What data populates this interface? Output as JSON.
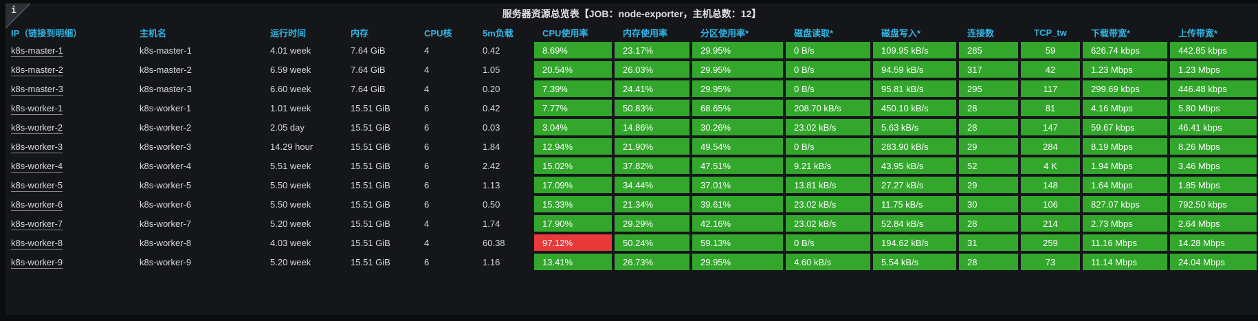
{
  "panel": {
    "title": "服务器资源总览表【JOB：node-exporter，主机总数：12】",
    "info_icon": "i"
  },
  "colors": {
    "cell_green": "#32A72C",
    "cell_red": "#E8393B",
    "header_blue": "#33B5E5"
  },
  "table": {
    "columns": [
      {
        "key": "ip",
        "label": "IP（链接到明细）",
        "type": "link"
      },
      {
        "key": "hostname",
        "label": "主机名"
      },
      {
        "key": "uptime",
        "label": "运行时间"
      },
      {
        "key": "memory",
        "label": "内存"
      },
      {
        "key": "cpu_cores",
        "label": "CPU核"
      },
      {
        "key": "load_5m",
        "label": "5m负载"
      },
      {
        "key": "cpu_usage",
        "label": "CPU使用率",
        "colored": true
      },
      {
        "key": "mem_usage",
        "label": "内存使用率",
        "colored": true
      },
      {
        "key": "partition_usage",
        "label": "分区使用率*",
        "colored": true
      },
      {
        "key": "disk_read",
        "label": "磁盘读取*",
        "colored": true
      },
      {
        "key": "disk_write",
        "label": "磁盘写入*",
        "colored": true
      },
      {
        "key": "connections",
        "label": "连接数",
        "colored": true
      },
      {
        "key": "tcp_tw",
        "label": "TCP_tw",
        "colored": true,
        "align": "center"
      },
      {
        "key": "download_bw",
        "label": "下载带宽*",
        "colored": true
      },
      {
        "key": "upload_bw",
        "label": "上传带宽*",
        "colored": true
      }
    ],
    "rows": [
      {
        "ip": "k8s-master-1",
        "hostname": "k8s-master-1",
        "uptime": "4.01 week",
        "memory": "7.64 GiB",
        "cpu_cores": "4",
        "load_5m": "0.42",
        "cpu_usage": "8.69%",
        "mem_usage": "23.17%",
        "partition_usage": "29.95%",
        "disk_read": "0 B/s",
        "disk_write": "109.95 kB/s",
        "connections": "285",
        "tcp_tw": "59",
        "download_bw": "626.74 kbps",
        "upload_bw": "442.85 kbps"
      },
      {
        "ip": "k8s-master-2",
        "hostname": "k8s-master-2",
        "uptime": "6.59 week",
        "memory": "7.64 GiB",
        "cpu_cores": "4",
        "load_5m": "1.05",
        "cpu_usage": "20.54%",
        "mem_usage": "26.03%",
        "partition_usage": "29.95%",
        "disk_read": "0 B/s",
        "disk_write": "94.59 kB/s",
        "connections": "317",
        "tcp_tw": "42",
        "download_bw": "1.23 Mbps",
        "upload_bw": "1.23 Mbps"
      },
      {
        "ip": "k8s-master-3",
        "hostname": "k8s-master-3",
        "uptime": "6.60 week",
        "memory": "7.64 GiB",
        "cpu_cores": "4",
        "load_5m": "0.20",
        "cpu_usage": "7.39%",
        "mem_usage": "24.41%",
        "partition_usage": "29.95%",
        "disk_read": "0 B/s",
        "disk_write": "95.81 kB/s",
        "connections": "295",
        "tcp_tw": "117",
        "download_bw": "299.69 kbps",
        "upload_bw": "446.48 kbps"
      },
      {
        "ip": "k8s-worker-1",
        "hostname": "k8s-worker-1",
        "uptime": "1.01 week",
        "memory": "15.51 GiB",
        "cpu_cores": "6",
        "load_5m": "0.42",
        "cpu_usage": "7.77%",
        "mem_usage": "50.83%",
        "partition_usage": "68.65%",
        "disk_read": "208.70 kB/s",
        "disk_write": "450.10 kB/s",
        "connections": "28",
        "tcp_tw": "81",
        "download_bw": "4.16 Mbps",
        "upload_bw": "5.80 Mbps"
      },
      {
        "ip": "k8s-worker-2",
        "hostname": "k8s-worker-2",
        "uptime": "2.05 day",
        "memory": "15.51 GiB",
        "cpu_cores": "6",
        "load_5m": "0.03",
        "cpu_usage": "3.04%",
        "mem_usage": "14.86%",
        "partition_usage": "30.26%",
        "disk_read": "23.02 kB/s",
        "disk_write": "5.63 kB/s",
        "connections": "28",
        "tcp_tw": "147",
        "download_bw": "59.67 kbps",
        "upload_bw": "46.41 kbps"
      },
      {
        "ip": "k8s-worker-3",
        "hostname": "k8s-worker-3",
        "uptime": "14.29 hour",
        "memory": "15.51 GiB",
        "cpu_cores": "6",
        "load_5m": "1.84",
        "cpu_usage": "12.94%",
        "mem_usage": "21.90%",
        "partition_usage": "49.54%",
        "disk_read": "0 B/s",
        "disk_write": "283.90 kB/s",
        "connections": "29",
        "tcp_tw": "284",
        "download_bw": "8.19 Mbps",
        "upload_bw": "8.26 Mbps"
      },
      {
        "ip": "k8s-worker-4",
        "hostname": "k8s-worker-4",
        "uptime": "5.51 week",
        "memory": "15.51 GiB",
        "cpu_cores": "6",
        "load_5m": "2.42",
        "cpu_usage": "15.02%",
        "mem_usage": "37.82%",
        "partition_usage": "47.51%",
        "disk_read": "9.21 kB/s",
        "disk_write": "43.95 kB/s",
        "connections": "52",
        "tcp_tw": "4 K",
        "download_bw": "1.94 Mbps",
        "upload_bw": "3.46 Mbps"
      },
      {
        "ip": "k8s-worker-5",
        "hostname": "k8s-worker-5",
        "uptime": "5.50 week",
        "memory": "15.51 GiB",
        "cpu_cores": "6",
        "load_5m": "1.13",
        "cpu_usage": "17.09%",
        "mem_usage": "34.44%",
        "partition_usage": "37.01%",
        "disk_read": "13.81 kB/s",
        "disk_write": "27.27 kB/s",
        "connections": "29",
        "tcp_tw": "148",
        "download_bw": "1.64 Mbps",
        "upload_bw": "1.85 Mbps"
      },
      {
        "ip": "k8s-worker-6",
        "hostname": "k8s-worker-6",
        "uptime": "5.50 week",
        "memory": "15.51 GiB",
        "cpu_cores": "6",
        "load_5m": "0.50",
        "cpu_usage": "15.33%",
        "mem_usage": "21.34%",
        "partition_usage": "39.61%",
        "disk_read": "23.02 kB/s",
        "disk_write": "11.75 kB/s",
        "connections": "30",
        "tcp_tw": "106",
        "download_bw": "827.07 kbps",
        "upload_bw": "792.50 kbps"
      },
      {
        "ip": "k8s-worker-7",
        "hostname": "k8s-worker-7",
        "uptime": "5.20 week",
        "memory": "15.51 GiB",
        "cpu_cores": "4",
        "load_5m": "1.74",
        "cpu_usage": "17.90%",
        "mem_usage": "29.29%",
        "partition_usage": "42.16%",
        "disk_read": "23.02 kB/s",
        "disk_write": "52.84 kB/s",
        "connections": "28",
        "tcp_tw": "214",
        "download_bw": "2.73 Mbps",
        "upload_bw": "2.64 Mbps"
      },
      {
        "ip": "k8s-worker-8",
        "hostname": "k8s-worker-8",
        "uptime": "4.03 week",
        "memory": "15.51 GiB",
        "cpu_cores": "4",
        "load_5m": "60.38",
        "cpu_usage": "97.12%",
        "mem_usage": "50.24%",
        "partition_usage": "59.13%",
        "disk_read": "0 B/s",
        "disk_write": "194.62 kB/s",
        "connections": "31",
        "tcp_tw": "259",
        "download_bw": "11.16 Mbps",
        "upload_bw": "14.28 Mbps"
      },
      {
        "ip": "k8s-worker-9",
        "hostname": "k8s-worker-9",
        "uptime": "5.20 week",
        "memory": "15.51 GiB",
        "cpu_cores": "6",
        "load_5m": "1.16",
        "cpu_usage": "13.41%",
        "mem_usage": "26.73%",
        "partition_usage": "29.95%",
        "disk_read": "4.60 kB/s",
        "disk_write": "5.54 kB/s",
        "connections": "28",
        "tcp_tw": "73",
        "download_bw": "11.14 Mbps",
        "upload_bw": "24.04 Mbps"
      }
    ],
    "alert_cells": [
      {
        "row": 10,
        "key": "cpu_usage"
      }
    ]
  }
}
